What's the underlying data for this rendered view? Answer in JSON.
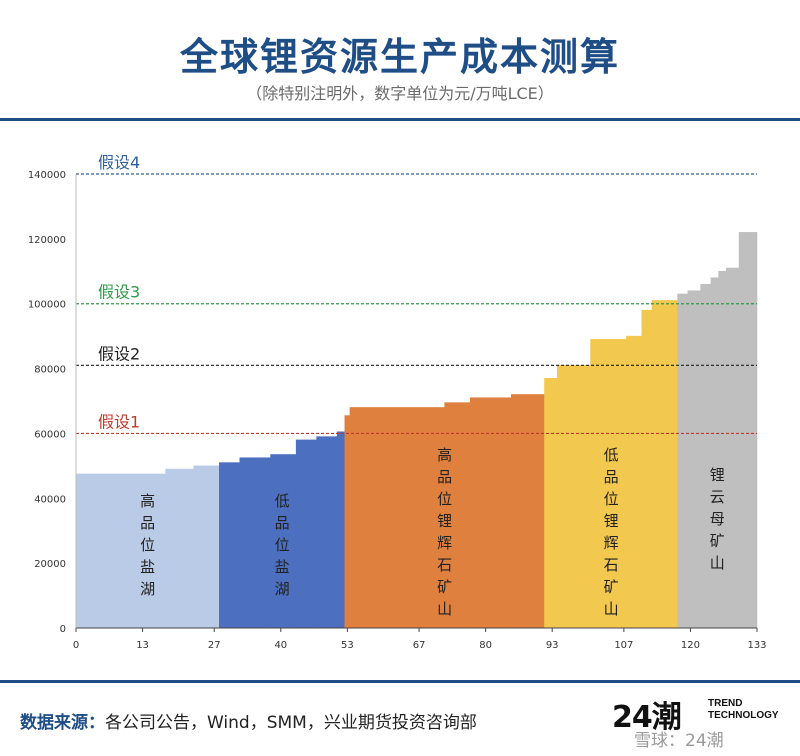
{
  "title": "全球锂资源生产成本测算",
  "subtitle": "（除特别注明外，数字单位为元/万吨LCE）",
  "footer": {
    "source_label": "数据来源：",
    "source_text": "各公司公告，Wind，SMM，兴业期货投资咨询部",
    "logo_number": "24",
    "logo_glyph": "潮",
    "logo_brand_line1": "TREND",
    "logo_brand_line2": "TECHNOLOGY",
    "watermark": "雪球：24潮"
  },
  "chart_data": {
    "type": "bar",
    "subtype": "cost-curve",
    "xlim": [
      0,
      133
    ],
    "ylim": [
      0,
      140000
    ],
    "x_ticks": [
      0,
      13,
      27,
      40,
      53,
      67,
      80,
      93,
      107,
      120,
      133
    ],
    "y_ticks": [
      0,
      20000,
      40000,
      60000,
      80000,
      100000,
      120000,
      140000
    ],
    "reference_lines": [
      {
        "label": "假设1",
        "value": 60000,
        "color": "#c0392b"
      },
      {
        "label": "假设2",
        "value": 81000,
        "color": "#222222"
      },
      {
        "label": "假设3",
        "value": 100000,
        "color": "#2e9b45"
      },
      {
        "label": "假设4",
        "value": 140000,
        "color": "#2e5f9e"
      }
    ],
    "segments": [
      {
        "name": "高品位盐湖",
        "color": "#b9cbe6",
        "steps": [
          {
            "x0": 0,
            "x1": 17.5,
            "y": 47500
          },
          {
            "x0": 17.5,
            "x1": 23,
            "y": 49000
          },
          {
            "x0": 23,
            "x1": 28,
            "y": 50000
          }
        ]
      },
      {
        "name": "低品位盐湖",
        "color": "#4c6fbf",
        "steps": [
          {
            "x0": 28,
            "x1": 32,
            "y": 51000
          },
          {
            "x0": 32,
            "x1": 38,
            "y": 52500
          },
          {
            "x0": 38,
            "x1": 43,
            "y": 53500
          },
          {
            "x0": 43,
            "x1": 47,
            "y": 58000
          },
          {
            "x0": 47,
            "x1": 51,
            "y": 59000
          },
          {
            "x0": 51,
            "x1": 52.5,
            "y": 60500
          }
        ]
      },
      {
        "name": "高品位锂辉石矿山",
        "color": "#e0803e",
        "steps": [
          {
            "x0": 52.5,
            "x1": 53.5,
            "y": 65500
          },
          {
            "x0": 53.5,
            "x1": 72,
            "y": 68000
          },
          {
            "x0": 72,
            "x1": 77,
            "y": 69500
          },
          {
            "x0": 77,
            "x1": 85,
            "y": 71000
          },
          {
            "x0": 85,
            "x1": 91.5,
            "y": 72000
          }
        ]
      },
      {
        "name": "低品位锂辉石矿山",
        "color": "#f3c84e",
        "steps": [
          {
            "x0": 91.5,
            "x1": 94,
            "y": 77000
          },
          {
            "x0": 94,
            "x1": 100.5,
            "y": 81000
          },
          {
            "x0": 100.5,
            "x1": 107.5,
            "y": 89000
          },
          {
            "x0": 107.5,
            "x1": 110.5,
            "y": 90000
          },
          {
            "x0": 110.5,
            "x1": 112.5,
            "y": 98000
          },
          {
            "x0": 112.5,
            "x1": 117.5,
            "y": 101000
          }
        ]
      },
      {
        "name": "锂云母矿山",
        "color": "#bfbfbf",
        "steps": [
          {
            "x0": 117.5,
            "x1": 119.5,
            "y": 103000
          },
          {
            "x0": 119.5,
            "x1": 122,
            "y": 104000
          },
          {
            "x0": 122,
            "x1": 124,
            "y": 106000
          },
          {
            "x0": 124,
            "x1": 125.5,
            "y": 108000
          },
          {
            "x0": 125.5,
            "x1": 127,
            "y": 110000
          },
          {
            "x0": 127,
            "x1": 129.5,
            "y": 111000
          },
          {
            "x0": 129.5,
            "x1": 133,
            "y": 122000
          }
        ]
      }
    ]
  }
}
